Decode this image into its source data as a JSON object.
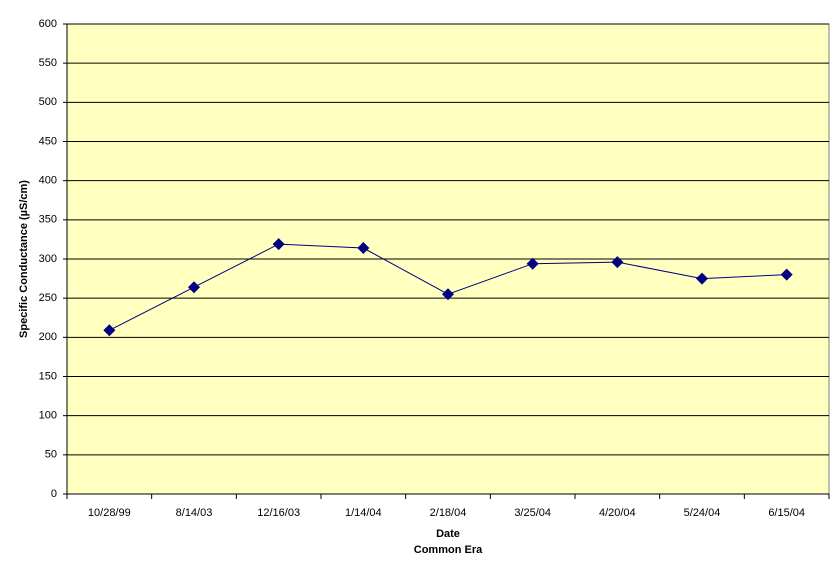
{
  "chart_data": {
    "type": "line",
    "y_label": "Specific Conductance (µS/cm)",
    "x_label": [
      "Date",
      "Common Era"
    ],
    "categories": [
      "10/28/99",
      "8/14/03",
      "12/16/03",
      "1/14/04",
      "2/18/04",
      "3/25/04",
      "4/20/04",
      "5/24/04",
      "6/15/04"
    ],
    "series": [
      {
        "color": "#000080",
        "values": [
          209,
          264,
          319,
          314,
          255,
          294,
          296,
          275,
          280
        ]
      }
    ],
    "ylim": [
      0,
      600
    ],
    "yticks": [
      0,
      50,
      100,
      150,
      200,
      250,
      300,
      350,
      400,
      450,
      500,
      550,
      600
    ],
    "grid": true,
    "background": "#ffffc0"
  }
}
